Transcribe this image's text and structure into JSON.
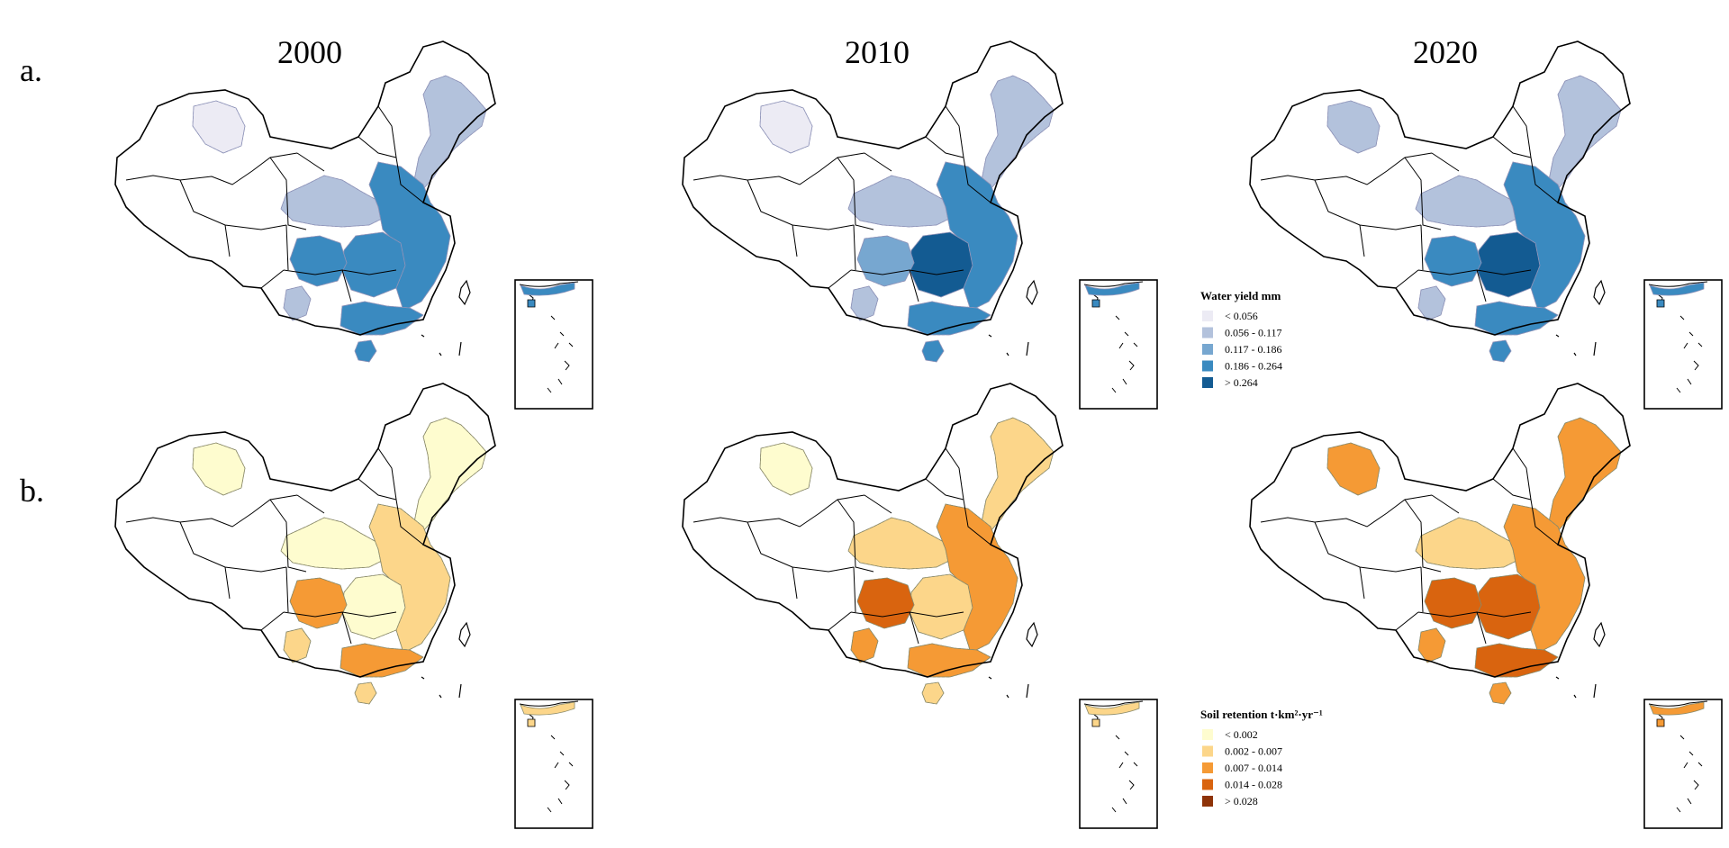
{
  "panels": [
    {
      "label": "a.",
      "years": [
        "2000",
        "2010",
        "2020"
      ],
      "legend": {
        "title": "Water yield mm",
        "classes": [
          {
            "label": "< 0.056",
            "color": "#ecebf4"
          },
          {
            "label": "0.056 - 0.117",
            "color": "#b3c2dc"
          },
          {
            "label": "0.117 - 0.186",
            "color": "#77a7d0"
          },
          {
            "label": "0.186 - 0.264",
            "color": "#3a8ac0"
          },
          {
            "label": "> 0.264",
            "color": "#135b92"
          }
        ]
      },
      "border_color": "#8e93b8"
    },
    {
      "label": "b.",
      "legend": {
        "title": "Soil retention t·km²·yr⁻¹",
        "classes": [
          {
            "label": "< 0.002",
            "color": "#fefccf"
          },
          {
            "label": "0.002 - 0.007",
            "color": "#fcd68a"
          },
          {
            "label": "0.007 - 0.014",
            "color": "#f59a35"
          },
          {
            "label": "0.014 - 0.028",
            "color": "#d9640f"
          },
          {
            "label": "> 0.028",
            "color": "#8e3308"
          }
        ]
      },
      "border_color": "#8a8a6a"
    }
  ],
  "maps": [
    {
      "panel": 0,
      "year": "2000",
      "levels": {
        "xinjiang": 0,
        "north": 1,
        "northeast": 1,
        "east": 3,
        "central": 3,
        "sichuan": 3,
        "south": 3,
        "southwest": 1,
        "hainan": 3
      }
    },
    {
      "panel": 0,
      "year": "2010",
      "levels": {
        "xinjiang": 0,
        "north": 1,
        "northeast": 1,
        "east": 3,
        "central": 4,
        "sichuan": 2,
        "south": 3,
        "southwest": 1,
        "hainan": 3
      }
    },
    {
      "panel": 0,
      "year": "2020",
      "levels": {
        "xinjiang": 1,
        "north": 1,
        "northeast": 1,
        "east": 3,
        "central": 4,
        "sichuan": 3,
        "south": 3,
        "southwest": 1,
        "hainan": 3
      }
    },
    {
      "panel": 1,
      "year": "2000",
      "levels": {
        "xinjiang": 0,
        "north": 0,
        "northeast": 0,
        "east": 1,
        "central": 0,
        "sichuan": 2,
        "south": 2,
        "southwest": 1,
        "hainan": 1
      }
    },
    {
      "panel": 1,
      "year": "2010",
      "levels": {
        "xinjiang": 0,
        "north": 1,
        "northeast": 1,
        "east": 2,
        "central": 1,
        "sichuan": 3,
        "south": 2,
        "southwest": 2,
        "hainan": 1
      }
    },
    {
      "panel": 1,
      "year": "2020",
      "levels": {
        "xinjiang": 2,
        "north": 1,
        "northeast": 2,
        "east": 2,
        "central": 3,
        "sichuan": 3,
        "south": 3,
        "southwest": 2,
        "hainan": 2
      }
    }
  ]
}
